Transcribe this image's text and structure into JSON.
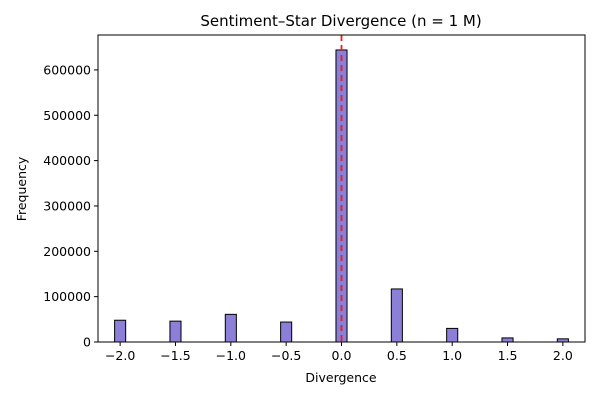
{
  "chart_data": {
    "type": "bar",
    "title": "Sentiment–Star Divergence (n = 1 M)",
    "xlabel": "Divergence",
    "ylabel": "Frequency",
    "x": [
      -2.0,
      -1.5,
      -1.0,
      -0.5,
      0.0,
      0.5,
      1.0,
      1.5,
      2.0
    ],
    "values": [
      48000,
      46000,
      61000,
      44000,
      644000,
      117000,
      30000,
      9000,
      7000
    ],
    "xlim": [
      -2.2,
      2.2
    ],
    "ylim": [
      0,
      677000
    ],
    "x_ticks": [
      "−2.0",
      "−1.5",
      "−1.0",
      "−0.5",
      "0.0",
      "0.5",
      "1.0",
      "1.5",
      "2.0"
    ],
    "x_tick_values": [
      -2.0,
      -1.5,
      -1.0,
      -0.5,
      0.0,
      0.5,
      1.0,
      1.5,
      2.0
    ],
    "y_ticks": [
      "0",
      "100000",
      "200000",
      "300000",
      "400000",
      "500000",
      "600000"
    ],
    "y_tick_values": [
      0,
      100000,
      200000,
      300000,
      400000,
      500000,
      600000
    ],
    "reference_line": {
      "x": 0.0,
      "style": "dashed",
      "color": "#e8201e"
    },
    "bar_color": "#8b7fd8",
    "bar_edge_color": "#000000",
    "grid": false,
    "legend": "none"
  }
}
